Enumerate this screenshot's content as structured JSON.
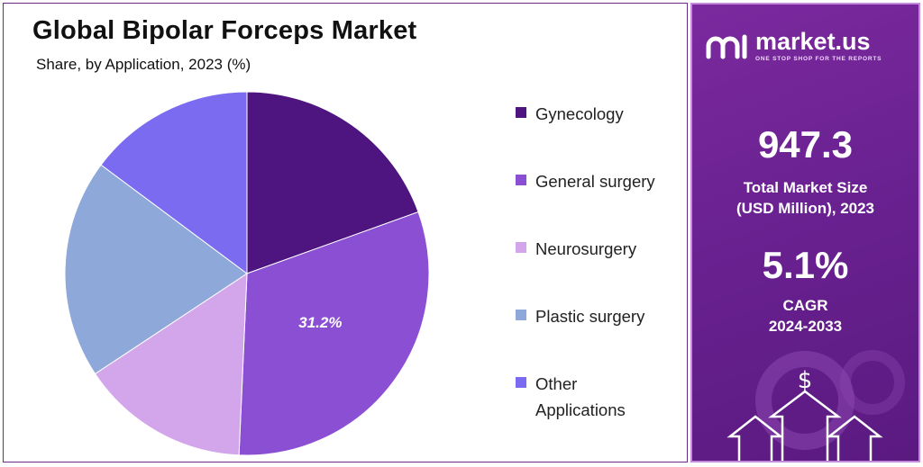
{
  "title": "Global Bipolar Forceps Market",
  "subtitle": "Share, by Application, 2023 (%)",
  "chart_data": {
    "type": "pie",
    "title": "Global Bipolar Forceps Market",
    "subtitle": "Share, by Application, 2023 (%)",
    "slices": [
      {
        "label": "Gynecology",
        "value": 19.5,
        "color": "#4e1580"
      },
      {
        "label": "General surgery",
        "value": 31.2,
        "color": "#8a4fd3"
      },
      {
        "label": "Neurosurgery",
        "value": 15.0,
        "color": "#d3a6ec"
      },
      {
        "label": "Plastic surgery",
        "value": 19.5,
        "color": "#8ea8da"
      },
      {
        "label": "Other Applications",
        "value": 14.8,
        "color": "#7a6bf0"
      }
    ],
    "data_labels": [
      {
        "label": "General surgery",
        "text": "31.2%"
      }
    ],
    "legend_placement": "right"
  },
  "legend": {
    "items": [
      {
        "label": "Gynecology",
        "color": "#4e1580"
      },
      {
        "label": "General surgery",
        "color": "#8a4fd3"
      },
      {
        "label": "Neurosurgery",
        "color": "#d3a6ec"
      },
      {
        "label": "Plastic surgery",
        "color": "#8ea8da"
      },
      {
        "label": "Other Applications",
        "color": "#7a6bf0"
      }
    ]
  },
  "brand": {
    "name": "market.us",
    "tagline": "ONE STOP SHOP FOR THE REPORTS"
  },
  "stats": {
    "market_size_value": "947.3",
    "market_size_label_line1": "Total Market Size",
    "market_size_label_line2": "(USD Million), 2023",
    "cagr_value": "5.1%",
    "cagr_label_line1": "CAGR",
    "cagr_label_line2": "2024-2033"
  },
  "icons": {
    "dollar": "$",
    "logo": "market-us-logo-icon",
    "arrows": "growth-arrows-icon"
  },
  "colors": {
    "panel_bg": "#6a2191",
    "accent": "#4e1580"
  }
}
